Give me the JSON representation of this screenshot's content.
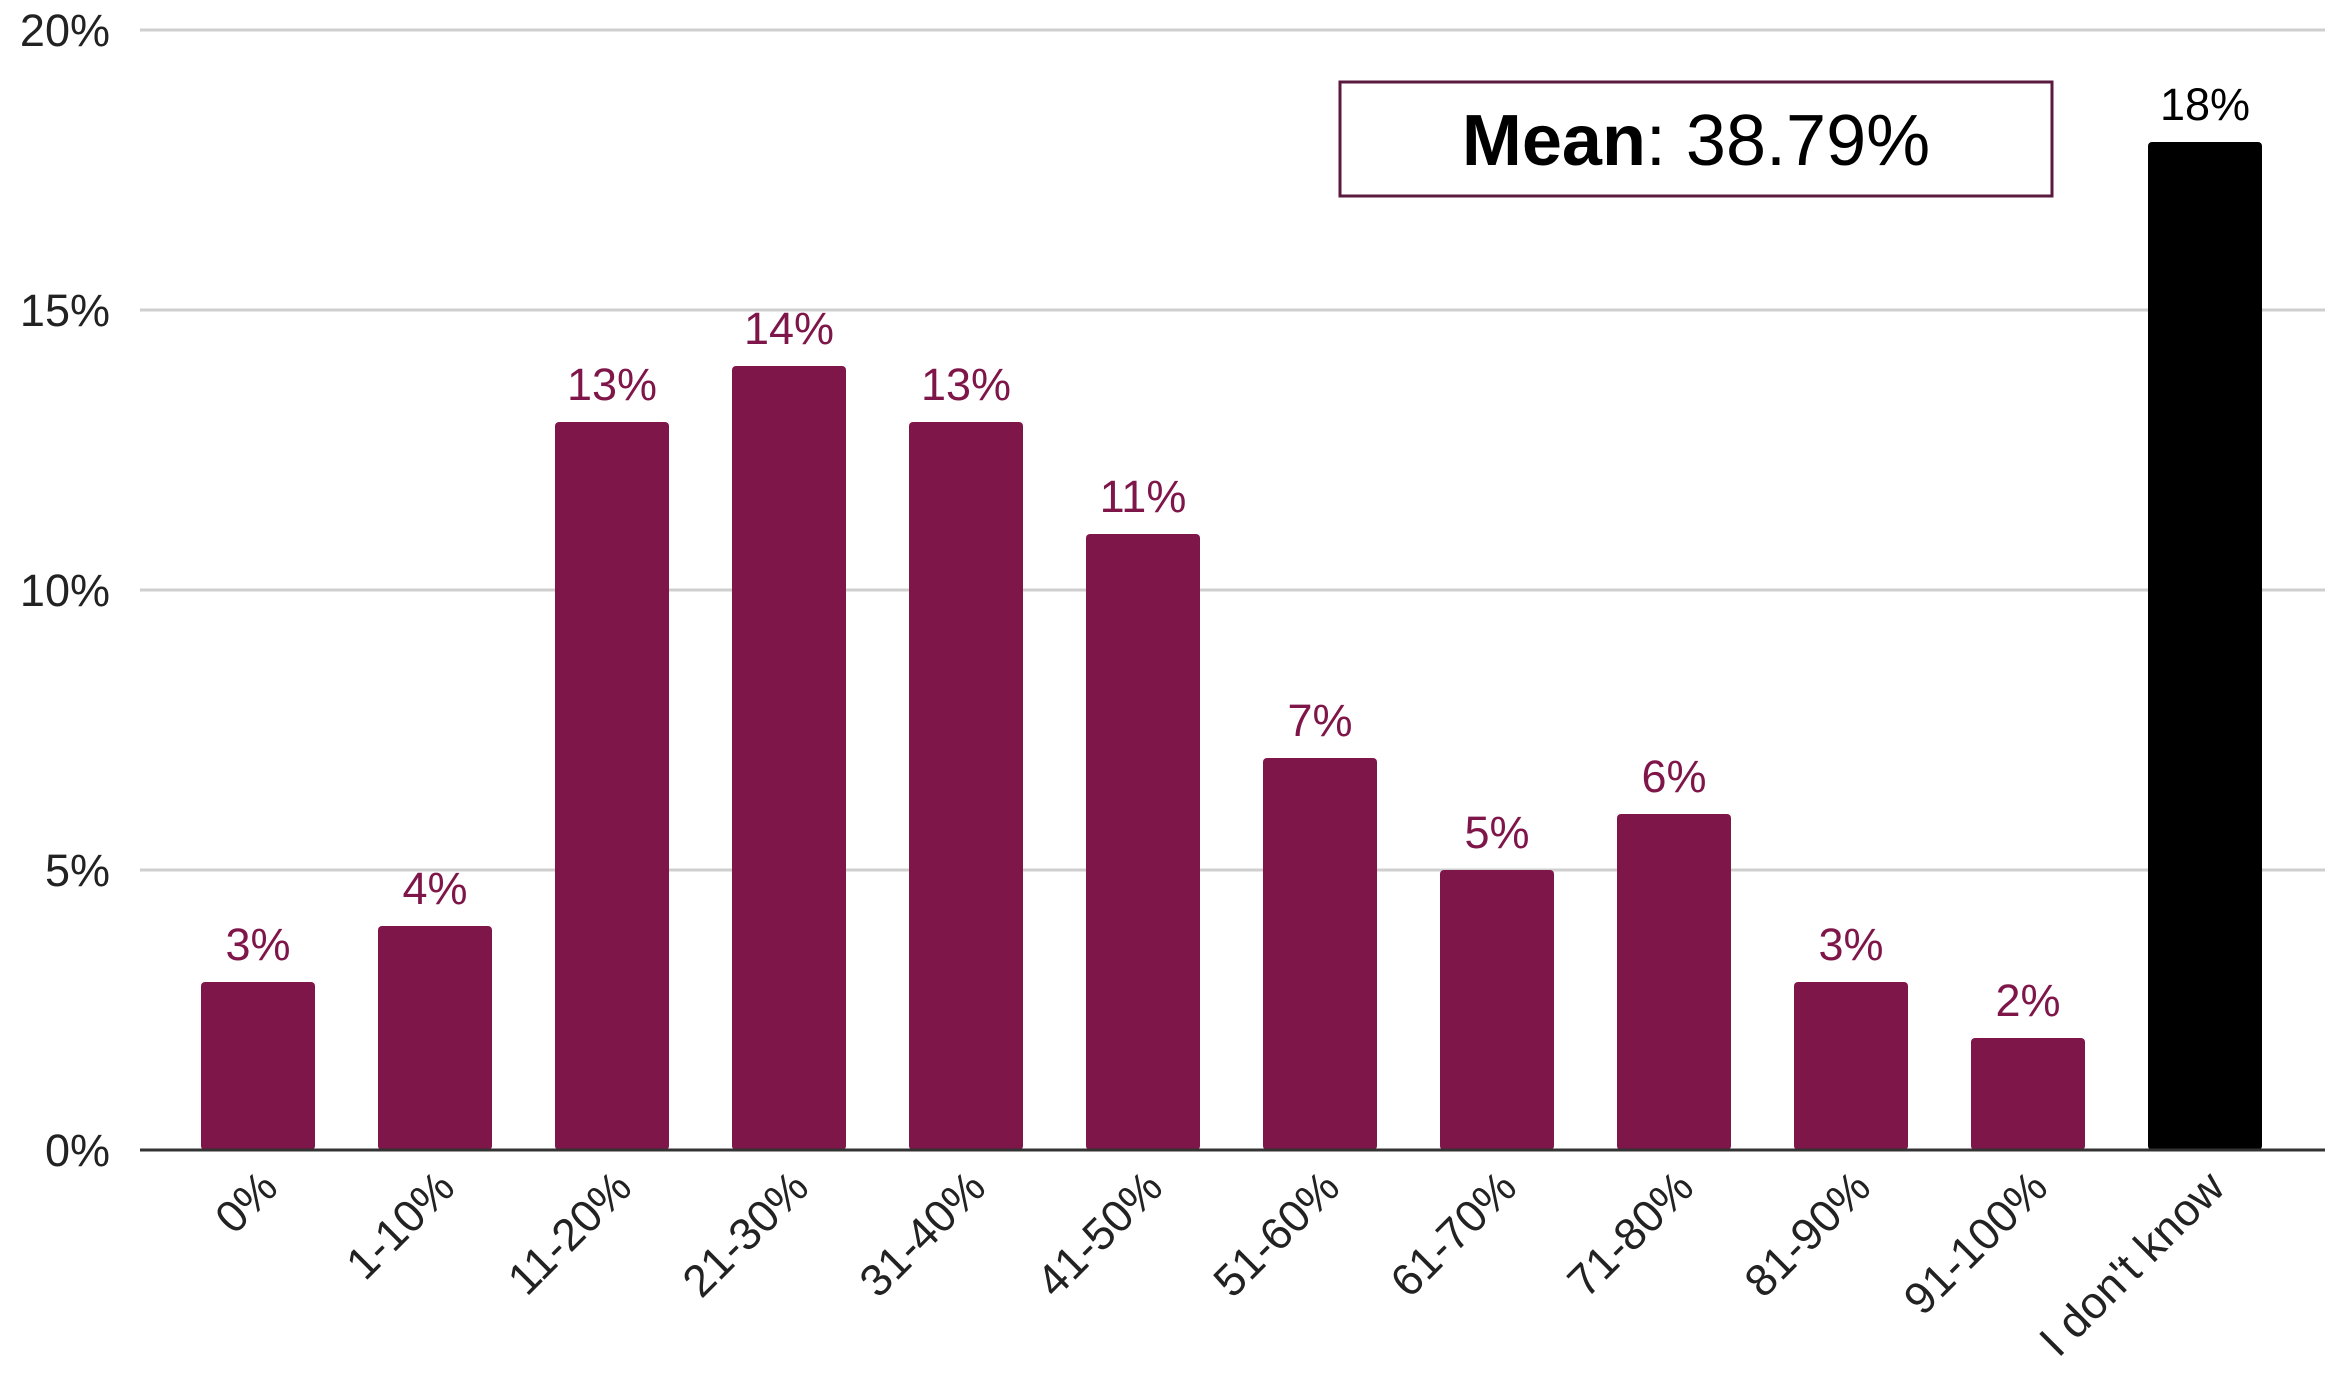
{
  "chart_data": {
    "type": "bar",
    "categories": [
      "0%",
      "1-10%",
      "11-20%",
      "21-30%",
      "31-40%",
      "41-50%",
      "51-60%",
      "61-70%",
      "71-80%",
      "81-90%",
      "91-100%",
      "I don't know"
    ],
    "values": [
      3,
      4,
      13,
      14,
      13,
      11,
      7,
      5,
      6,
      3,
      2,
      18
    ],
    "data_labels": [
      "3%",
      "4%",
      "13%",
      "14%",
      "13%",
      "11%",
      "7%",
      "5%",
      "6%",
      "3%",
      "2%",
      "18%"
    ],
    "bar_colors": [
      "#7f1649",
      "#7f1649",
      "#7f1649",
      "#7f1649",
      "#7f1649",
      "#7f1649",
      "#7f1649",
      "#7f1649",
      "#7f1649",
      "#7f1649",
      "#7f1649",
      "#000000"
    ],
    "label_colors": [
      "#7f1649",
      "#7f1649",
      "#7f1649",
      "#7f1649",
      "#7f1649",
      "#7f1649",
      "#7f1649",
      "#7f1649",
      "#7f1649",
      "#7f1649",
      "#7f1649",
      "#000000"
    ],
    "ylim": [
      0,
      20
    ],
    "yticks": [
      0,
      5,
      10,
      15,
      20
    ],
    "ytick_labels": [
      "0%",
      "5%",
      "10%",
      "15%",
      "20%"
    ],
    "grid": true,
    "title": "",
    "xlabel": "",
    "ylabel": "",
    "annotation": {
      "bold": "Mean",
      "rest": ": 38.79%"
    }
  }
}
